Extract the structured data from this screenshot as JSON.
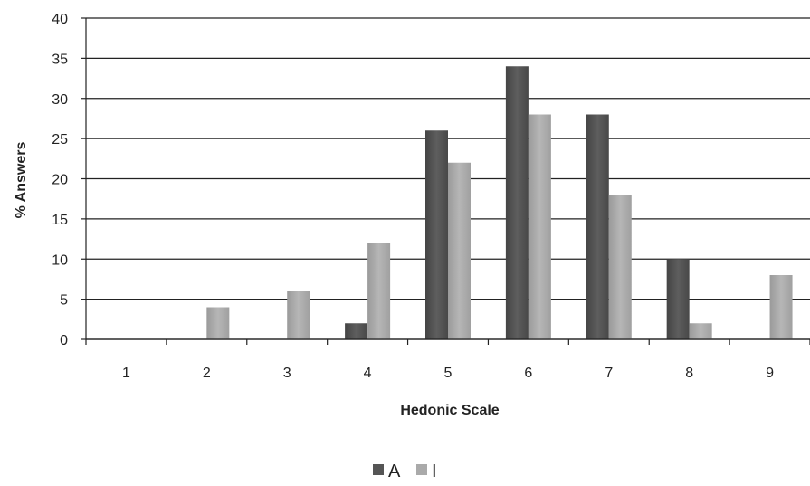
{
  "chart_data": {
    "type": "bar",
    "title": "",
    "xlabel": "Hedonic Scale",
    "ylabel": "% Answers",
    "categories": [
      "1",
      "2",
      "3",
      "4",
      "5",
      "6",
      "7",
      "8",
      "9"
    ],
    "ylim": [
      0,
      40
    ],
    "yticks": [
      0,
      5,
      10,
      15,
      20,
      25,
      30,
      35,
      40
    ],
    "grid": true,
    "legend_position": "bottom",
    "series": [
      {
        "name": "A",
        "values": [
          0,
          0,
          0,
          2,
          26,
          34,
          28,
          10,
          0
        ],
        "color": "#555555"
      },
      {
        "name": "I",
        "values": [
          0,
          4,
          6,
          12,
          22,
          28,
          18,
          2,
          8
        ],
        "color": "#aaaaaa"
      }
    ]
  }
}
